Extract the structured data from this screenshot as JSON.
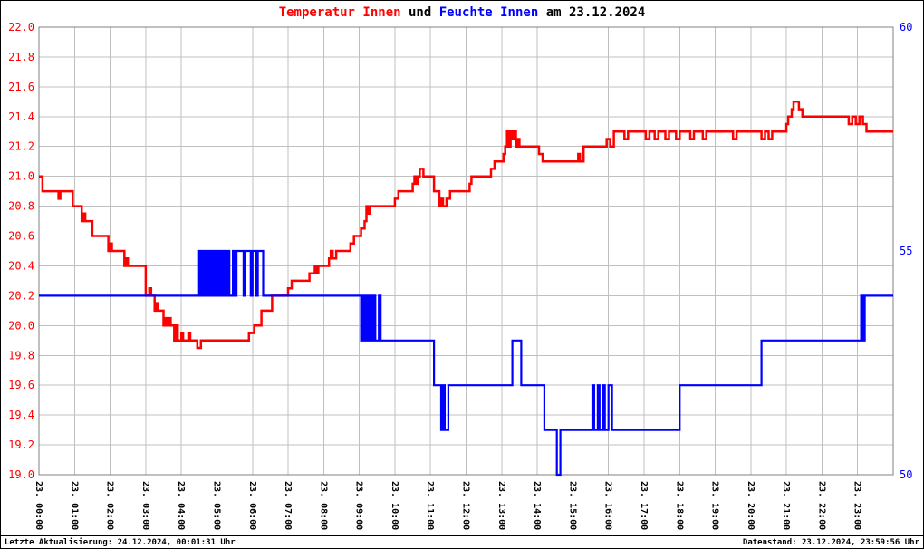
{
  "title": {
    "temp_label": "Temperatur Innen",
    "connector": " und ",
    "humidity_label": "Feuchte Innen",
    "date_suffix": " am 23.12.2024"
  },
  "footer": {
    "last_update": "Letzte Aktualisierung: 24.12.2024, 00:01:31 Uhr",
    "data_state": "Datenstand: 23.12.2024, 23:59:56 Uhr"
  },
  "colors": {
    "temperature": "#ff0000",
    "humidity": "#0000ff",
    "grid": "#c0c0c0",
    "frame": "#808080",
    "background": "#ffffff",
    "text": "#000000"
  },
  "chart_data": {
    "type": "line",
    "title": "Temperatur Innen und Feuchte Innen am 23.12.2024",
    "grid": true,
    "legend_position": "title",
    "x_axis": {
      "hours": 24,
      "tick_labels": [
        "23. 00:00",
        "23. 01:00",
        "23. 02:00",
        "23. 03:00",
        "23. 04:00",
        "23. 05:00",
        "23. 06:00",
        "23. 07:00",
        "23. 08:00",
        "23. 09:00",
        "23. 10:00",
        "23. 11:00",
        "23. 12:00",
        "23. 13:00",
        "23. 14:00",
        "23. 15:00",
        "23. 16:00",
        "23. 17:00",
        "23. 18:00",
        "23. 19:00",
        "23. 20:00",
        "23. 21:00",
        "23. 22:00",
        "23. 23:00"
      ]
    },
    "left_axis": {
      "min": 19.0,
      "max": 22.0,
      "tick_step": 0.2,
      "color": "#ff0000",
      "tick_labels": [
        "22.0",
        "21.8",
        "21.6",
        "21.4",
        "21.2",
        "21.0",
        "20.8",
        "20.6",
        "20.4",
        "20.2",
        "20.0",
        "19.8",
        "19.6",
        "19.4",
        "19.2",
        "19.0"
      ]
    },
    "right_axis": {
      "min": 50,
      "max": 60,
      "color": "#0000ff",
      "tick_values": [
        60,
        55,
        50
      ],
      "tick_labels": [
        "60",
        "55",
        "50"
      ]
    },
    "series": [
      {
        "id": "temperature",
        "name": "Temperatur Innen",
        "axis": "left",
        "color": "#ff0000",
        "width": 2.5,
        "unit": "°C",
        "points": [
          [
            0,
            21.0
          ],
          [
            0.1,
            20.9
          ],
          [
            0.55,
            20.85
          ],
          [
            0.6,
            20.9
          ],
          [
            0.95,
            20.8
          ],
          [
            1.2,
            20.7
          ],
          [
            1.25,
            20.75
          ],
          [
            1.3,
            20.7
          ],
          [
            1.5,
            20.6
          ],
          [
            1.95,
            20.5
          ],
          [
            2.0,
            20.55
          ],
          [
            2.05,
            20.5
          ],
          [
            2.4,
            20.4
          ],
          [
            2.45,
            20.45
          ],
          [
            2.5,
            20.4
          ],
          [
            3.0,
            20.2
          ],
          [
            3.1,
            20.25
          ],
          [
            3.15,
            20.2
          ],
          [
            3.25,
            20.1
          ],
          [
            3.3,
            20.15
          ],
          [
            3.35,
            20.1
          ],
          [
            3.5,
            20.0
          ],
          [
            3.55,
            20.05
          ],
          [
            3.6,
            20.0
          ],
          [
            3.65,
            20.05
          ],
          [
            3.7,
            20.0
          ],
          [
            3.8,
            19.9
          ],
          [
            3.85,
            20.0
          ],
          [
            3.9,
            19.9
          ],
          [
            4.0,
            19.95
          ],
          [
            4.05,
            19.9
          ],
          [
            4.2,
            19.95
          ],
          [
            4.25,
            19.9
          ],
          [
            4.45,
            19.85
          ],
          [
            4.55,
            19.9
          ],
          [
            5.9,
            19.95
          ],
          [
            6.05,
            20.0
          ],
          [
            6.25,
            20.1
          ],
          [
            6.55,
            20.2
          ],
          [
            7.0,
            20.25
          ],
          [
            7.1,
            20.3
          ],
          [
            7.6,
            20.35
          ],
          [
            7.75,
            20.4
          ],
          [
            7.8,
            20.35
          ],
          [
            7.85,
            20.4
          ],
          [
            8.15,
            20.45
          ],
          [
            8.2,
            20.5
          ],
          [
            8.25,
            20.45
          ],
          [
            8.35,
            20.5
          ],
          [
            8.75,
            20.55
          ],
          [
            8.85,
            20.6
          ],
          [
            9.05,
            20.65
          ],
          [
            9.15,
            20.7
          ],
          [
            9.2,
            20.8
          ],
          [
            9.25,
            20.75
          ],
          [
            9.3,
            20.8
          ],
          [
            10.0,
            20.85
          ],
          [
            10.1,
            20.9
          ],
          [
            10.5,
            20.95
          ],
          [
            10.55,
            21.0
          ],
          [
            10.6,
            20.95
          ],
          [
            10.65,
            21.0
          ],
          [
            10.7,
            21.05
          ],
          [
            10.8,
            21.0
          ],
          [
            11.1,
            20.9
          ],
          [
            11.25,
            20.8
          ],
          [
            11.3,
            20.85
          ],
          [
            11.35,
            20.8
          ],
          [
            11.45,
            20.85
          ],
          [
            11.55,
            20.9
          ],
          [
            12.1,
            20.95
          ],
          [
            12.15,
            21.0
          ],
          [
            12.7,
            21.05
          ],
          [
            12.8,
            21.1
          ],
          [
            13.05,
            21.15
          ],
          [
            13.1,
            21.2
          ],
          [
            13.15,
            21.3
          ],
          [
            13.2,
            21.2
          ],
          [
            13.25,
            21.3
          ],
          [
            13.3,
            21.25
          ],
          [
            13.35,
            21.3
          ],
          [
            13.4,
            21.2
          ],
          [
            13.45,
            21.25
          ],
          [
            13.5,
            21.2
          ],
          [
            14.05,
            21.15
          ],
          [
            14.15,
            21.1
          ],
          [
            15.15,
            21.15
          ],
          [
            15.2,
            21.1
          ],
          [
            15.3,
            21.2
          ],
          [
            15.95,
            21.25
          ],
          [
            16.05,
            21.2
          ],
          [
            16.15,
            21.3
          ],
          [
            16.45,
            21.25
          ],
          [
            16.55,
            21.3
          ],
          [
            17.05,
            21.25
          ],
          [
            17.15,
            21.3
          ],
          [
            17.3,
            21.25
          ],
          [
            17.4,
            21.3
          ],
          [
            17.6,
            21.25
          ],
          [
            17.7,
            21.3
          ],
          [
            17.9,
            21.25
          ],
          [
            18.0,
            21.3
          ],
          [
            18.3,
            21.25
          ],
          [
            18.4,
            21.3
          ],
          [
            18.65,
            21.25
          ],
          [
            18.75,
            21.3
          ],
          [
            19.5,
            21.25
          ],
          [
            19.6,
            21.3
          ],
          [
            20.3,
            21.25
          ],
          [
            20.4,
            21.3
          ],
          [
            20.5,
            21.25
          ],
          [
            20.6,
            21.3
          ],
          [
            21.0,
            21.35
          ],
          [
            21.05,
            21.4
          ],
          [
            21.15,
            21.45
          ],
          [
            21.2,
            21.5
          ],
          [
            21.35,
            21.45
          ],
          [
            21.45,
            21.4
          ],
          [
            22.75,
            21.35
          ],
          [
            22.85,
            21.4
          ],
          [
            22.95,
            21.35
          ],
          [
            23.05,
            21.4
          ],
          [
            23.15,
            21.35
          ],
          [
            23.25,
            21.3
          ]
        ]
      },
      {
        "id": "humidity",
        "name": "Feuchte Innen",
        "axis": "right",
        "color": "#0000ff",
        "width": 2.2,
        "unit": "%",
        "points": [
          [
            0,
            54
          ],
          [
            4.5,
            55
          ],
          [
            4.55,
            54
          ],
          [
            4.6,
            55
          ],
          [
            4.65,
            54
          ],
          [
            4.7,
            55
          ],
          [
            4.75,
            54
          ],
          [
            4.8,
            55
          ],
          [
            4.85,
            54
          ],
          [
            4.9,
            55
          ],
          [
            4.95,
            54
          ],
          [
            5.0,
            55
          ],
          [
            5.05,
            54
          ],
          [
            5.1,
            55
          ],
          [
            5.15,
            54
          ],
          [
            5.2,
            55
          ],
          [
            5.25,
            54
          ],
          [
            5.3,
            55
          ],
          [
            5.35,
            54
          ],
          [
            5.45,
            55
          ],
          [
            5.5,
            54
          ],
          [
            5.55,
            55
          ],
          [
            5.75,
            54
          ],
          [
            5.8,
            55
          ],
          [
            5.95,
            54
          ],
          [
            6.0,
            55
          ],
          [
            6.1,
            54
          ],
          [
            6.15,
            55
          ],
          [
            6.3,
            54
          ],
          [
            9.05,
            53
          ],
          [
            9.1,
            54
          ],
          [
            9.15,
            53
          ],
          [
            9.2,
            54
          ],
          [
            9.25,
            53
          ],
          [
            9.3,
            54
          ],
          [
            9.35,
            53
          ],
          [
            9.4,
            54
          ],
          [
            9.45,
            53
          ],
          [
            9.55,
            54
          ],
          [
            9.6,
            53
          ],
          [
            11.1,
            52
          ],
          [
            11.3,
            51
          ],
          [
            11.35,
            52
          ],
          [
            11.4,
            51
          ],
          [
            11.5,
            52
          ],
          [
            13.3,
            53
          ],
          [
            13.55,
            52
          ],
          [
            14.2,
            51
          ],
          [
            14.55,
            50
          ],
          [
            14.65,
            51
          ],
          [
            15.55,
            52
          ],
          [
            15.6,
            51
          ],
          [
            15.7,
            52
          ],
          [
            15.75,
            51
          ],
          [
            15.85,
            52
          ],
          [
            15.9,
            51
          ],
          [
            16.0,
            52
          ],
          [
            16.1,
            51
          ],
          [
            18.0,
            52
          ],
          [
            20.3,
            53
          ],
          [
            23.1,
            54
          ],
          [
            23.15,
            53
          ],
          [
            23.2,
            54
          ]
        ]
      }
    ]
  }
}
